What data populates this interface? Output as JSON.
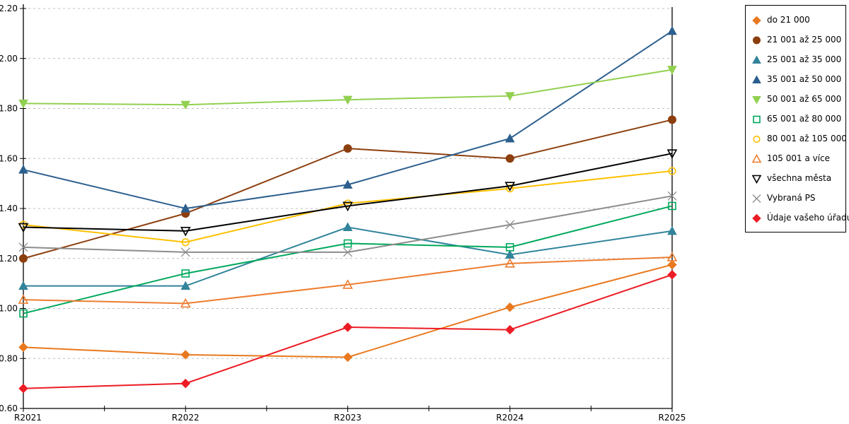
{
  "chart_data": {
    "type": "line",
    "title": "",
    "categories": [
      "R2021",
      "R2022",
      "R2023",
      "R2024",
      "R2025"
    ],
    "ylim": [
      0.6,
      2.2
    ],
    "ytick_step": 0.2,
    "grid": "horizontal-dashed",
    "legend_position": "right",
    "y_tick_labels": [
      "0.60",
      "0.80",
      "1.00",
      "1.20",
      "1.40",
      "1.60",
      "1.80",
      "2.00",
      "2.20"
    ],
    "series": [
      {
        "name": "do 21 000",
        "marker": "diamond",
        "filled": true,
        "color": "#E8791E",
        "values": [
          0.845,
          0.815,
          0.805,
          1.005,
          1.175
        ]
      },
      {
        "name": "21 001 až 25 000",
        "marker": "circle",
        "filled": true,
        "color": "#8C3F0E",
        "values": [
          1.2,
          1.38,
          1.64,
          1.6,
          1.755
        ]
      },
      {
        "name": "25 001 až 35 000",
        "marker": "triangle-up",
        "filled": true,
        "color": "#31849B",
        "values": [
          1.09,
          1.09,
          1.325,
          1.215,
          1.31
        ]
      },
      {
        "name": "35 001 až 50 000",
        "marker": "triangle-up",
        "filled": true,
        "color": "#2C5F8E",
        "values": [
          1.555,
          1.4,
          1.495,
          1.68,
          2.11
        ]
      },
      {
        "name": "50 001 až 65 000",
        "marker": "triangle-down",
        "filled": true,
        "color": "#92D050",
        "values": [
          1.82,
          1.815,
          1.835,
          1.85,
          1.955
        ]
      },
      {
        "name": "65 001 až 80 000",
        "marker": "square",
        "filled": false,
        "color": "#00A85D",
        "values": [
          0.98,
          1.14,
          1.26,
          1.245,
          1.41
        ]
      },
      {
        "name": "80 001 až 105 000",
        "marker": "circle",
        "filled": false,
        "color": "#FFC000",
        "values": [
          1.335,
          1.265,
          1.42,
          1.48,
          1.55
        ]
      },
      {
        "name": "105 001 a více",
        "marker": "triangle-up",
        "filled": false,
        "color": "#ED7D31",
        "values": [
          1.035,
          1.02,
          1.095,
          1.18,
          1.205
        ]
      },
      {
        "name": "všechna města",
        "marker": "triangle-down",
        "filled": false,
        "color": "#000000",
        "values": [
          1.325,
          1.31,
          1.41,
          1.49,
          1.62
        ]
      },
      {
        "name": "Vybraná PS",
        "marker": "x",
        "filled": false,
        "color": "#8C8C8C",
        "values": [
          1.245,
          1.225,
          1.225,
          1.335,
          1.45
        ]
      },
      {
        "name": "Údaje vašeho úřadu",
        "marker": "diamond",
        "filled": true,
        "color": "#EC1C24",
        "values": [
          0.68,
          0.7,
          0.925,
          0.915,
          1.135
        ]
      }
    ],
    "colors": {
      "axis": "#000000",
      "gridline": "#BFBFBF",
      "tick_label": "#000000"
    }
  }
}
